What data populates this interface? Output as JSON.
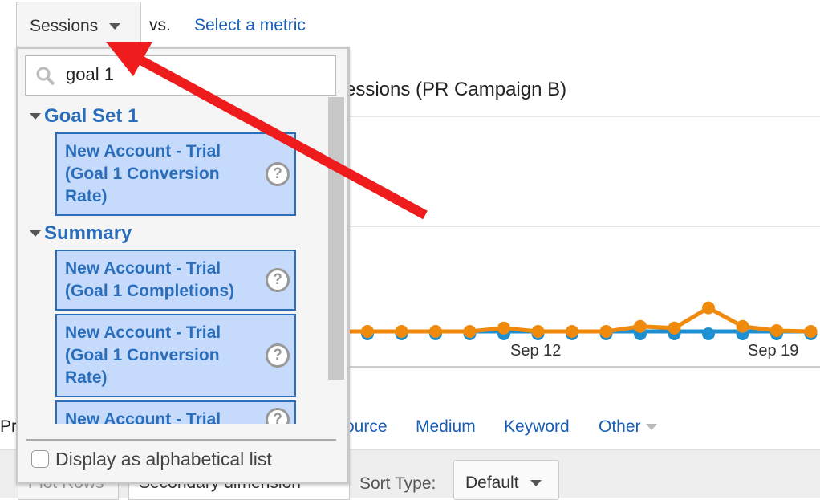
{
  "header": {
    "metric_button": "Sessions",
    "vs_label": "vs.",
    "select_metric_link": "Select a metric"
  },
  "chart": {
    "title_partial": "essions (PR Campaign B)",
    "x_ticks": [
      "Sep 12",
      "Sep 19"
    ]
  },
  "chart_data": {
    "type": "line",
    "x_ticks": [
      "Sep 12",
      "Sep 19"
    ],
    "series": [
      {
        "color": "#f08a0c",
        "values": [
          1,
          1,
          1,
          1,
          1.2,
          1,
          1,
          1,
          1.3,
          1.2,
          2.4,
          1.3,
          1.05,
          1
        ]
      },
      {
        "color": "#1e8fd0",
        "values": [
          1,
          1,
          1,
          1,
          1,
          1,
          1,
          1,
          1,
          1,
          1,
          1,
          1,
          1
        ]
      }
    ]
  },
  "dimension_tabs": {
    "primary_partial": "Pr",
    "source_partial": "ource",
    "medium": "Medium",
    "keyword": "Keyword",
    "other": "Other"
  },
  "toolbar": {
    "plot_rows": "Plot Rows",
    "secondary_dimension": "Secondary dimension",
    "sort_label": "Sort Type:",
    "sort_value": "Default"
  },
  "dropdown": {
    "search_value": "goal 1",
    "groups": [
      {
        "label": "Goal Set 1",
        "items": [
          "New Account - Trial (Goal 1 Conversion Rate)"
        ]
      },
      {
        "label": "Summary",
        "items": [
          "New Account - Trial (Goal 1 Completions)",
          "New Account - Trial (Goal 1 Conversion Rate)",
          "New Account - Trial"
        ]
      }
    ],
    "alphabetical_label": "Display as alphabetical list"
  },
  "colors": {
    "link": "#1a5fb4",
    "orange_series": "#f08a0c",
    "blue_series": "#1e8fd0",
    "arrow": "#ee1c1c"
  }
}
